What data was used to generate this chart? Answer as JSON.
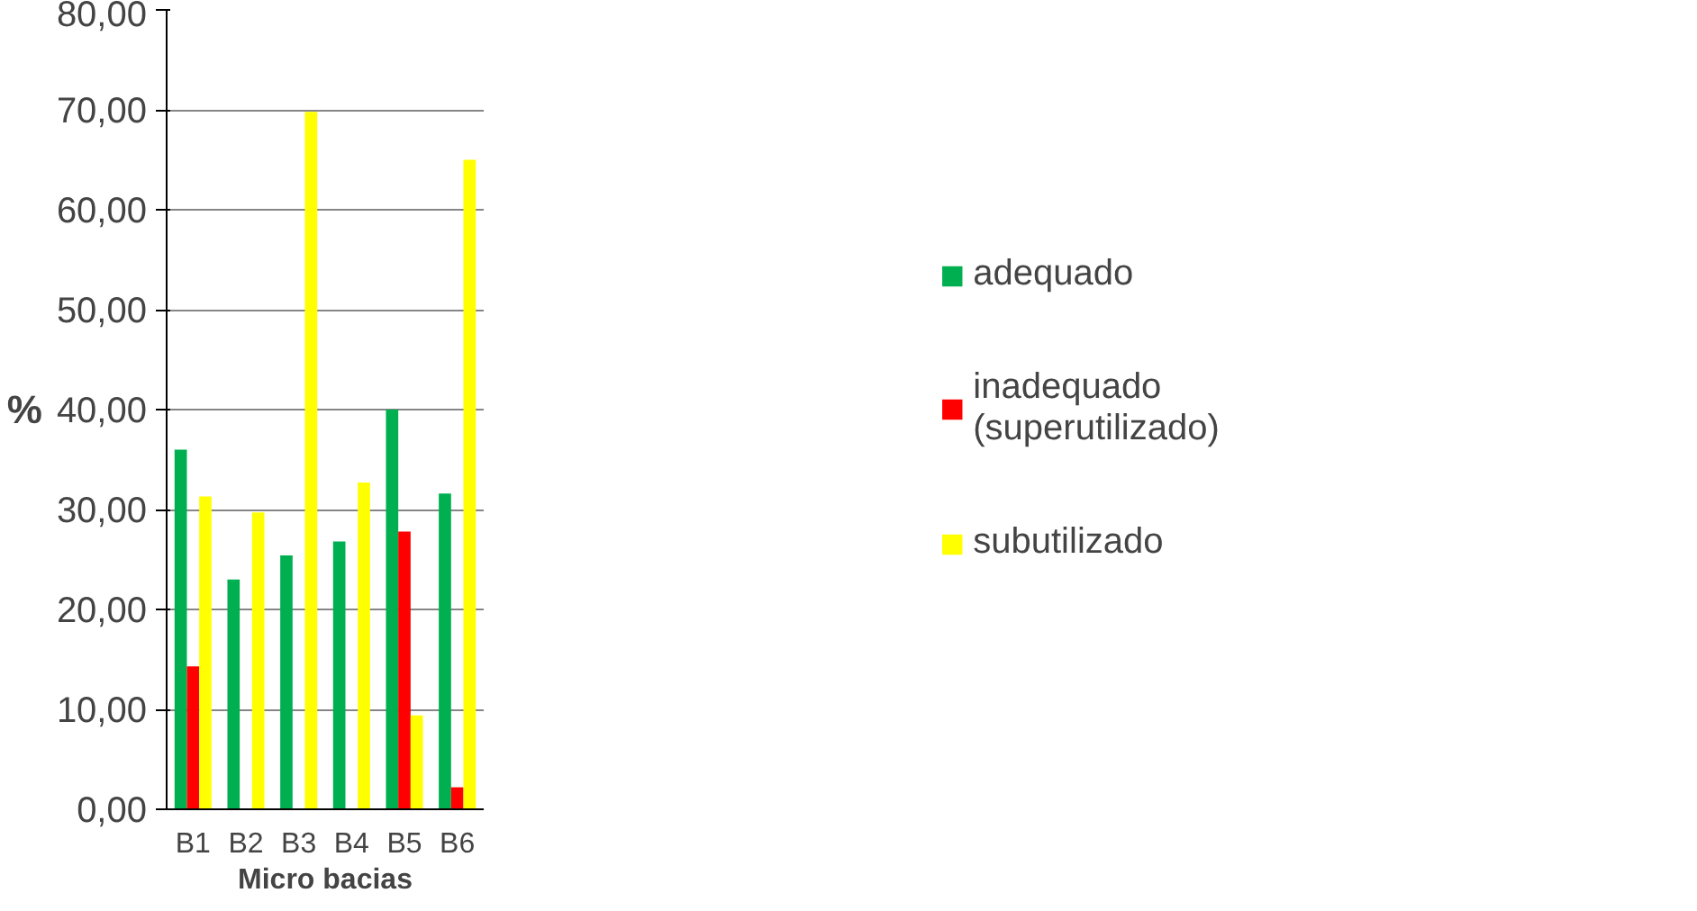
{
  "chart_data": {
    "type": "bar",
    "xlabel": "Micro bacias",
    "ylabel": "%",
    "categories": [
      "B1",
      "B2",
      "B3",
      "B4",
      "B5",
      "B6"
    ],
    "series": [
      {
        "name": "adequado",
        "color": "#00b050",
        "values": [
          36.0,
          23.0,
          25.4,
          26.8,
          40.0,
          31.6
        ]
      },
      {
        "name": "inadequado (superutilizado)",
        "color": "#ff0000",
        "values": [
          14.3,
          0,
          0,
          0,
          27.8,
          2.2
        ]
      },
      {
        "name": "subutilizado",
        "color": "#ffff00",
        "values": [
          31.3,
          29.7,
          69.8,
          32.7,
          9.4,
          65.0
        ]
      }
    ],
    "ylim": [
      0,
      80
    ],
    "yticks": [
      {
        "value": 0,
        "label": "0,00"
      },
      {
        "value": 10,
        "label": "10,00"
      },
      {
        "value": 20,
        "label": "20,00"
      },
      {
        "value": 30,
        "label": "30,00"
      },
      {
        "value": 40,
        "label": "40,00"
      },
      {
        "value": 50,
        "label": "50,00"
      },
      {
        "value": 60,
        "label": "60,00"
      },
      {
        "value": 70,
        "label": "70,00"
      },
      {
        "value": 80,
        "label": "80,00"
      }
    ],
    "grid": "y",
    "legend": "right"
  }
}
